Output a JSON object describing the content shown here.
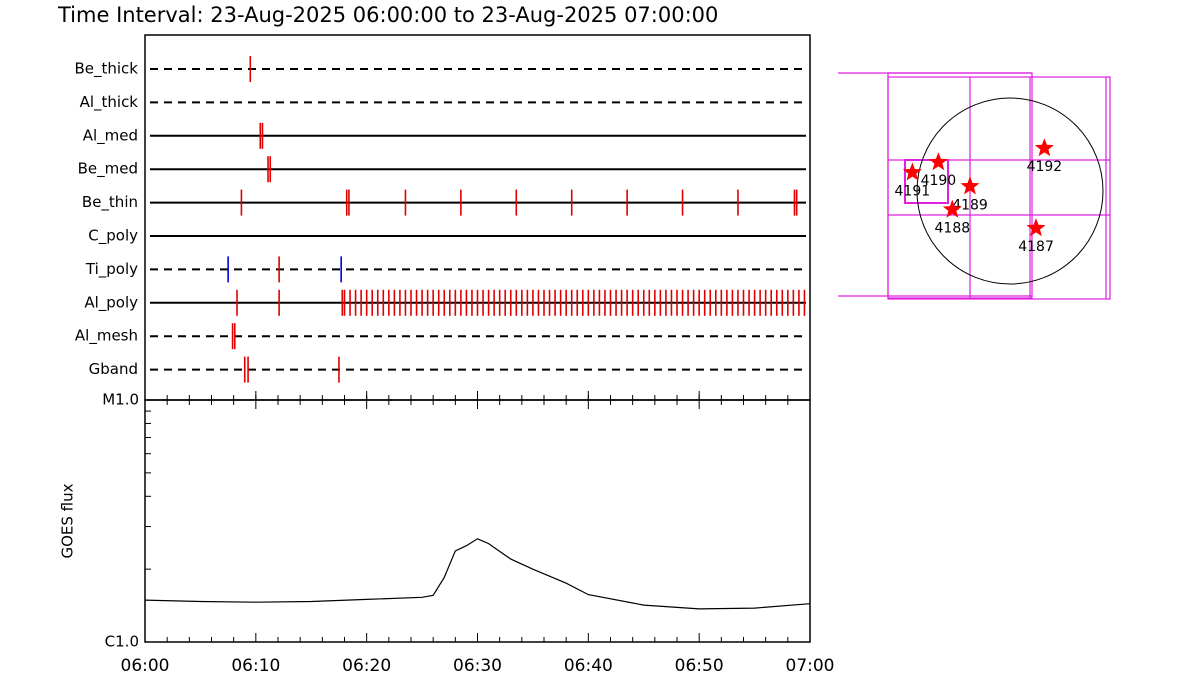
{
  "chart_data": [
    {
      "type": "event",
      "title": "Time Interval: 23-Aug-2025 06:00:00 to 23-Aug-2025 07:00:00",
      "xlim": [
        0,
        60
      ],
      "xminor": [
        2,
        4,
        6,
        8,
        10,
        12,
        14,
        16,
        18,
        20,
        22,
        24,
        26,
        28,
        30,
        32,
        34,
        36,
        38,
        40,
        42,
        44,
        46,
        48,
        50,
        52,
        54,
        56,
        58
      ],
      "filters": [
        {
          "name": "Be_thick",
          "line_style": "dashed",
          "color": "#e00000",
          "times": [
            9.5
          ]
        },
        {
          "name": "Al_thick",
          "line_style": "dashed",
          "color": "#e00000",
          "times": []
        },
        {
          "name": "Al_med",
          "line_style": "solid",
          "color": "#e00000",
          "times": [
            10.4,
            10.6
          ]
        },
        {
          "name": "Be_med",
          "line_style": "solid",
          "color": "#e00000",
          "times": [
            11.1,
            11.3
          ]
        },
        {
          "name": "Be_thin",
          "line_style": "solid",
          "color": "#e00000",
          "times": [
            8.7,
            18.2,
            18.4,
            23.5,
            28.5,
            33.5,
            38.5,
            43.5,
            48.5,
            53.5,
            58.6,
            58.8
          ]
        },
        {
          "name": "C_poly",
          "line_style": "solid",
          "color": "#e00000",
          "times": []
        },
        {
          "name": "Ti_poly",
          "line_style": "dashed",
          "color": "#e00000",
          "colors": [
            "#0000e0",
            "#e00000",
            "#0000e0"
          ],
          "times": [
            7.5,
            12.1,
            17.7
          ]
        },
        {
          "name": "Al_poly",
          "line_style": "solid",
          "color": "#e00000",
          "times": [
            8.3,
            12.1,
            17.8,
            18.0,
            18.5,
            19.0,
            19.5,
            20.0,
            20.5,
            21.0,
            21.5,
            22.0,
            22.5,
            23.0,
            23.5,
            24.0,
            24.5,
            25.0,
            25.5,
            26.0,
            26.5,
            27.0,
            27.5,
            28.0,
            28.5,
            29.0,
            29.5,
            30.0,
            30.5,
            31.0,
            31.5,
            32.0,
            32.5,
            33.0,
            33.5,
            34.0,
            34.5,
            35.0,
            35.5,
            36.0,
            36.5,
            37.0,
            37.5,
            38.0,
            38.5,
            39.0,
            39.5,
            40.0,
            40.5,
            41.0,
            41.5,
            42.0,
            42.5,
            43.0,
            43.5,
            44.0,
            44.5,
            45.0,
            45.5,
            46.0,
            46.5,
            47.0,
            47.5,
            48.0,
            48.5,
            49.0,
            49.5,
            50.0,
            50.5,
            51.0,
            51.5,
            52.0,
            52.5,
            53.0,
            53.5,
            54.0,
            54.5,
            55.0,
            55.5,
            56.0,
            56.5,
            57.0,
            57.5,
            58.0,
            58.5,
            59.0,
            59.5
          ]
        },
        {
          "name": "Al_mesh",
          "line_style": "dashed",
          "color": "#e00000",
          "times": [
            7.9,
            8.1
          ]
        },
        {
          "name": "Gband",
          "line_style": "dashed",
          "color": "#e00000",
          "times": [
            9.0,
            9.3,
            17.5
          ]
        }
      ]
    },
    {
      "type": "line",
      "ylabel": "GOES flux",
      "log_scale": true,
      "color": "#000000",
      "x": [
        0,
        5,
        10,
        15,
        20,
        25,
        26,
        27,
        28,
        29,
        30,
        31,
        33,
        35,
        38,
        40,
        45,
        50,
        55,
        60
      ],
      "values": [
        1.49e-06,
        1.47e-06,
        1.46e-06,
        1.47e-06,
        1.5e-06,
        1.53e-06,
        1.56e-06,
        1.85e-06,
        2.38e-06,
        2.5e-06,
        2.67e-06,
        2.55e-06,
        2.2e-06,
        2e-06,
        1.75e-06,
        1.57e-06,
        1.42e-06,
        1.37e-06,
        1.38e-06,
        1.44e-06
      ],
      "xlim": [
        0,
        60
      ],
      "xticks": [
        {
          "value": 0,
          "label": "06:00"
        },
        {
          "value": 10,
          "label": "06:10"
        },
        {
          "value": 20,
          "label": "06:20"
        },
        {
          "value": 30,
          "label": "06:30"
        },
        {
          "value": 40,
          "label": "06:40"
        },
        {
          "value": 50,
          "label": "06:50"
        },
        {
          "value": 60,
          "label": "07:00"
        }
      ],
      "xminor": [
        2,
        4,
        6,
        8,
        12,
        14,
        16,
        18,
        22,
        24,
        26,
        28,
        32,
        34,
        36,
        38,
        42,
        44,
        46,
        48,
        52,
        54,
        56,
        58
      ],
      "ylim": [
        1e-06,
        1e-05
      ],
      "yticks": [
        {
          "value": 1e-06,
          "label": "C1.0"
        },
        {
          "value": 1e-05,
          "label": "M1.0"
        }
      ],
      "yminor": [
        2e-06,
        3e-06,
        4e-06,
        5e-06,
        6e-06,
        7e-06,
        8e-06,
        9e-06
      ]
    },
    {
      "type": "scatter",
      "color": "#ff0000",
      "points": [
        {
          "label": "4191",
          "x": -1.05,
          "y": 0.2
        },
        {
          "label": "4190",
          "x": -0.77,
          "y": 0.31
        },
        {
          "label": "4189",
          "x": -0.43,
          "y": 0.05
        },
        {
          "label": "4188",
          "x": -0.62,
          "y": -0.2
        },
        {
          "label": "4192",
          "x": 0.37,
          "y": 0.46
        },
        {
          "label": "4187",
          "x": 0.28,
          "y": -0.4
        }
      ]
    }
  ]
}
